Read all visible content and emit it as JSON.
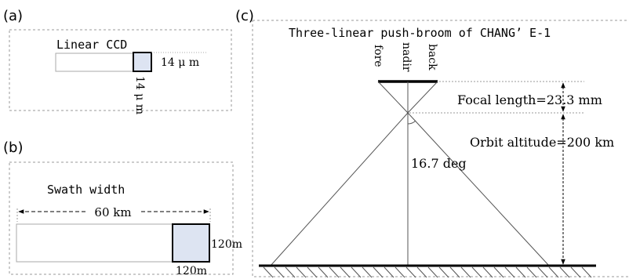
{
  "panel_a": {
    "label": "(a)",
    "title": "Linear CCD",
    "pixel_size_h": "14 μ m",
    "pixel_size_v": "14 μ m"
  },
  "panel_b": {
    "label": "(b)",
    "title": "Swath width",
    "swath_value": "60 km",
    "ground_pixel_h": "120m",
    "ground_pixel_v": "120m"
  },
  "panel_c": {
    "label": "(c)",
    "title": "Three-linear push-broom of CHANG’ E-1",
    "view_fore": "fore",
    "view_nadir": "nadir",
    "view_back": "back",
    "focal_length": "Focal length=23.3 mm",
    "orbit_altitude": "Orbit altitude=200 km",
    "angle": "16.7 deg"
  },
  "colors": {
    "pixel_fill": "#dde4f2",
    "frame_dash": "#999999",
    "line": "#000000"
  }
}
